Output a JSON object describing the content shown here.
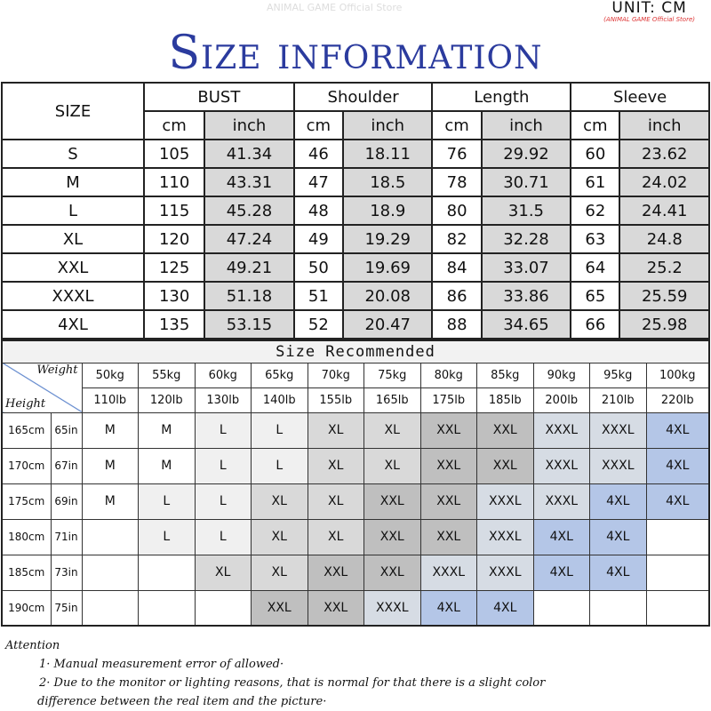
{
  "title": "Size information",
  "unit": "UNIT: CM",
  "store": "(ANIMAL GAME Official Store)",
  "watermark": "ANIMAL GAME Official Store",
  "size_table": {
    "size_header": "SIZE",
    "groups": [
      "BUST",
      "Shoulder",
      "Length",
      "Sleeve"
    ],
    "sub": [
      "cm",
      "inch"
    ],
    "rows": [
      [
        "S",
        "105",
        "41.34",
        "46",
        "18.11",
        "76",
        "29.92",
        "60",
        "23.62"
      ],
      [
        "M",
        "110",
        "43.31",
        "47",
        "18.5",
        "78",
        "30.71",
        "61",
        "24.02"
      ],
      [
        "L",
        "115",
        "45.28",
        "48",
        "18.9",
        "80",
        "31.5",
        "62",
        "24.41"
      ],
      [
        "XL",
        "120",
        "47.24",
        "49",
        "19.29",
        "82",
        "32.28",
        "63",
        "24.8"
      ],
      [
        "XXL",
        "125",
        "49.21",
        "50",
        "19.69",
        "84",
        "33.07",
        "64",
        "25.2"
      ],
      [
        "XXXL",
        "130",
        "51.18",
        "51",
        "20.08",
        "86",
        "33.86",
        "65",
        "25.59"
      ],
      [
        "4XL",
        "135",
        "53.15",
        "52",
        "20.47",
        "88",
        "34.65",
        "66",
        "25.98"
      ]
    ]
  },
  "recommend": {
    "title": "Size Recommended",
    "weight_label": "Weight",
    "height_label": "Height",
    "kg": [
      "50kg",
      "55kg",
      "60kg",
      "65kg",
      "70kg",
      "75kg",
      "80kg",
      "85kg",
      "90kg",
      "95kg",
      "100kg"
    ],
    "lb": [
      "110lb",
      "120lb",
      "130lb",
      "140lb",
      "155lb",
      "165lb",
      "175lb",
      "185lb",
      "200lb",
      "210lb",
      "220lb"
    ],
    "rows": [
      {
        "cm": "165cm",
        "in": "65in",
        "sizes": [
          "M",
          "M",
          "L",
          "L",
          "XL",
          "XL",
          "XXL",
          "XXL",
          "XXXL",
          "XXXL",
          "4XL"
        ]
      },
      {
        "cm": "170cm",
        "in": "67in",
        "sizes": [
          "M",
          "M",
          "L",
          "L",
          "XL",
          "XL",
          "XXL",
          "XXL",
          "XXXL",
          "XXXL",
          "4XL"
        ]
      },
      {
        "cm": "175cm",
        "in": "69in",
        "sizes": [
          "M",
          "L",
          "L",
          "XL",
          "XL",
          "XXL",
          "XXL",
          "XXXL",
          "XXXL",
          "4XL",
          "4XL"
        ]
      },
      {
        "cm": "180cm",
        "in": "71in",
        "sizes": [
          "",
          "L",
          "L",
          "XL",
          "XL",
          "XXL",
          "XXL",
          "XXXL",
          "4XL",
          "4XL",
          ""
        ]
      },
      {
        "cm": "185cm",
        "in": "73in",
        "sizes": [
          "",
          "",
          "XL",
          "XL",
          "XXL",
          "XXL",
          "XXXL",
          "XXXL",
          "4XL",
          "4XL",
          ""
        ]
      },
      {
        "cm": "190cm",
        "in": "75in",
        "sizes": [
          "",
          "",
          "",
          "XXL",
          "XXL",
          "XXXL",
          "4XL",
          "4XL",
          "",
          "",
          ""
        ]
      }
    ],
    "colors": {
      "L": "#f0f0f0",
      "XL": "#d9d9d9",
      "XXL": "#bfbfbf",
      "XXXL": "#d6dce4",
      "4XL": "#b4c6e7"
    }
  },
  "attention": {
    "heading": "Attention",
    "notes": [
      "1· Manual measurement error of allowed·",
      "2·  Due to the monitor or lighting reasons, that is normal for that there is a slight color",
      "difference between the real item and the picture·"
    ]
  }
}
